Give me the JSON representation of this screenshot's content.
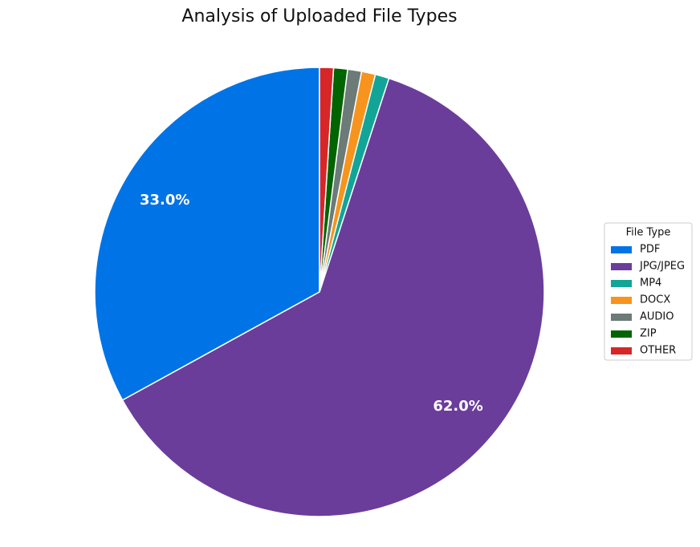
{
  "chart_data": {
    "type": "pie",
    "title": "Analysis of Uploaded File Types",
    "categories": [
      "PDF",
      "JPG/JPEG",
      "MP4",
      "DOCX",
      "AUDIO",
      "ZIP",
      "OTHER"
    ],
    "values": [
      33,
      62,
      1,
      1,
      1,
      1,
      1
    ],
    "value_labels": [
      "33.0%",
      "62.0%",
      null,
      null,
      null,
      null,
      null
    ],
    "colors": [
      "#0073e6",
      "#6a3d9a",
      "#12a597",
      "#f7941d",
      "#6c7a78",
      "#006400",
      "#d62728"
    ],
    "legend_title": "File Type",
    "legend": "right"
  }
}
